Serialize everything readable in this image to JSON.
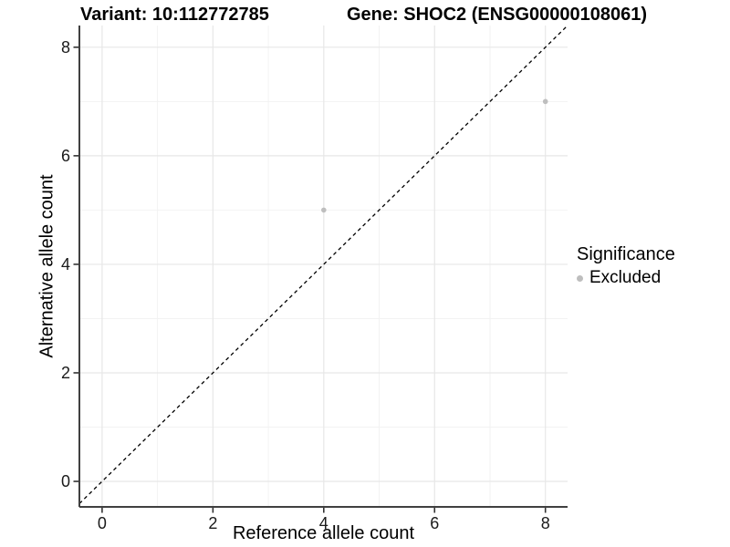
{
  "chart_data": {
    "type": "scatter",
    "title_left": "Variant: 10:112772785",
    "title_right": "Gene: SHOC2 (ENSG00000108061)",
    "xlabel": "Reference allele count",
    "ylabel": "Alternative allele count",
    "xlim": [
      -0.41,
      8.4
    ],
    "ylim": [
      -0.47,
      8.4
    ],
    "x_ticks": [
      0,
      2,
      4,
      6,
      8
    ],
    "y_ticks": [
      0,
      2,
      4,
      6,
      8
    ],
    "x_minor_ticks": [
      1,
      3,
      5,
      7
    ],
    "y_minor_ticks": [
      1,
      3,
      5,
      7
    ],
    "grid": "major and minor gridlines, legend at right",
    "series": [
      {
        "name": "Excluded",
        "color": "#bebebe",
        "points": [
          [
            4,
            5
          ],
          [
            8,
            7
          ]
        ]
      }
    ],
    "identity_line": {
      "slope": 1,
      "intercept": 0,
      "style": "dashed",
      "color": "#000000"
    },
    "legend": {
      "title": "Significance",
      "items": [
        {
          "label": "Excluded",
          "color": "#bebebe"
        }
      ]
    }
  },
  "colors": {
    "background": "#ffffff",
    "point": "#bebebe",
    "grid_major": "#e7e7e7",
    "grid_minor": "#f2f2f2",
    "axis_line": "#404040",
    "tick_mark": "#333333",
    "tick_text": "#1a1a1a",
    "reference_line": "#000000"
  }
}
